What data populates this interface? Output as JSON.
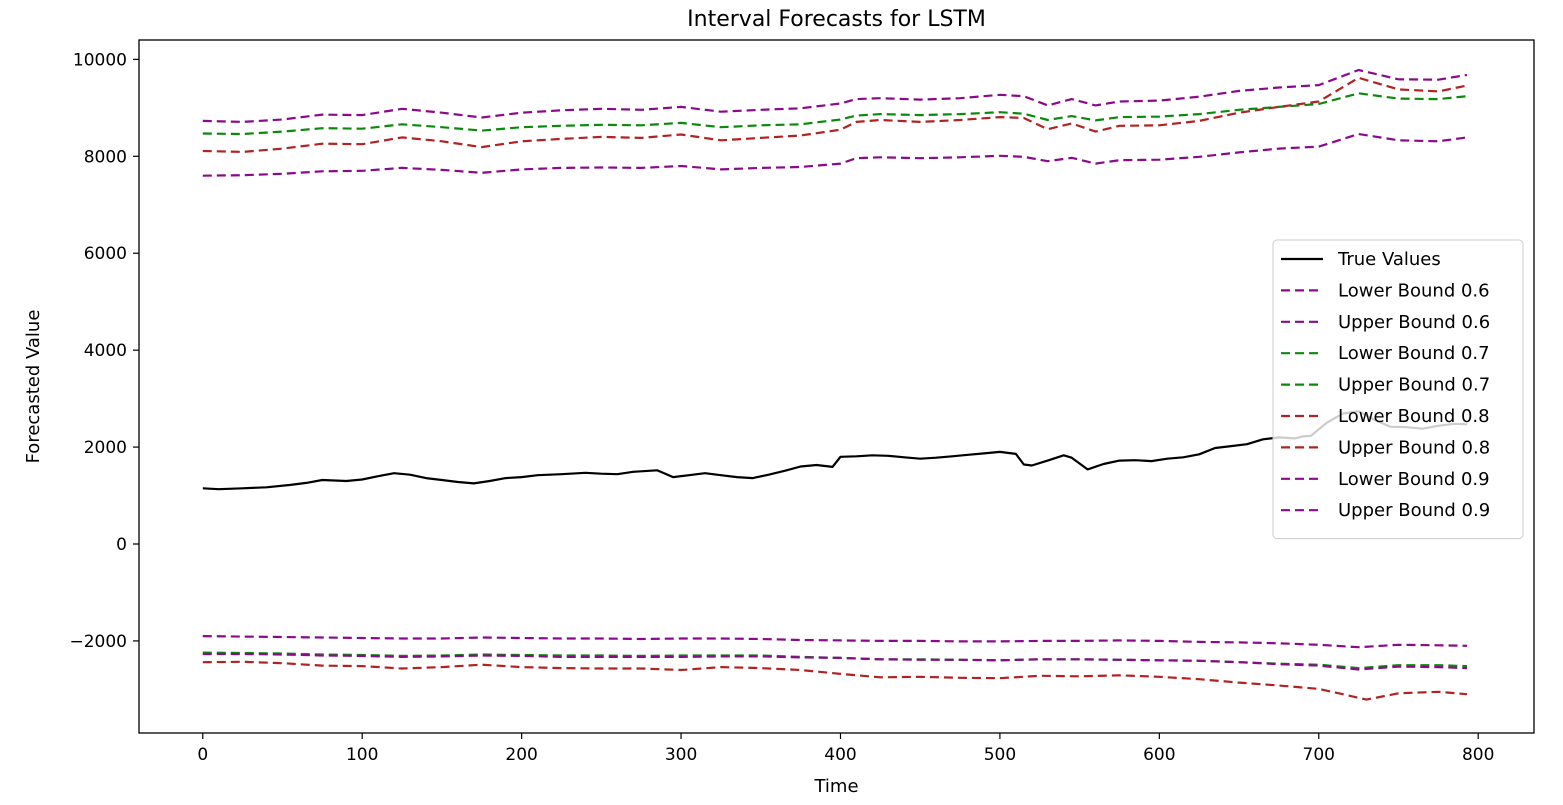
{
  "chart_data": {
    "type": "line",
    "title": "Interval Forecasts for LSTM",
    "xlabel": "Time",
    "ylabel": "Forecasted Value",
    "xlim": [
      -40,
      835
    ],
    "ylim": [
      -3900,
      10400
    ],
    "xticks": [
      0,
      100,
      200,
      300,
      400,
      500,
      600,
      700,
      800
    ],
    "xtick_labels": [
      "0",
      "100",
      "200",
      "300",
      "400",
      "500",
      "600",
      "700",
      "800"
    ],
    "yticks": [
      -2000,
      0,
      2000,
      4000,
      6000,
      8000,
      10000
    ],
    "ytick_labels": [
      "−2000",
      "0",
      "2000",
      "4000",
      "6000",
      "8000",
      "10000"
    ],
    "grid": false,
    "legend_position": "center-right",
    "series": [
      {
        "name": "True Values",
        "color": "#000000",
        "style": "solid",
        "x": [
          0,
          10,
          25,
          40,
          55,
          65,
          75,
          90,
          100,
          110,
          120,
          130,
          140,
          150,
          160,
          170,
          180,
          190,
          200,
          210,
          225,
          240,
          250,
          260,
          270,
          285,
          295,
          305,
          315,
          325,
          335,
          345,
          355,
          365,
          375,
          385,
          395,
          400,
          410,
          420,
          430,
          440,
          450,
          460,
          470,
          480,
          490,
          500,
          510,
          515,
          520,
          530,
          540,
          545,
          555,
          565,
          575,
          585,
          595,
          605,
          615,
          625,
          635,
          645,
          655,
          665,
          675,
          685,
          690,
          695,
          705,
          715,
          725,
          735,
          745,
          755,
          765,
          775,
          785,
          793
        ],
        "values": [
          1150,
          1130,
          1150,
          1170,
          1220,
          1260,
          1320,
          1300,
          1330,
          1400,
          1460,
          1430,
          1360,
          1320,
          1280,
          1250,
          1300,
          1360,
          1380,
          1420,
          1440,
          1470,
          1450,
          1440,
          1490,
          1520,
          1380,
          1420,
          1460,
          1420,
          1380,
          1360,
          1430,
          1510,
          1600,
          1630,
          1590,
          1800,
          1810,
          1830,
          1820,
          1790,
          1760,
          1780,
          1810,
          1840,
          1870,
          1900,
          1860,
          1640,
          1620,
          1720,
          1830,
          1780,
          1540,
          1650,
          1720,
          1730,
          1710,
          1760,
          1790,
          1850,
          1980,
          2020,
          2060,
          2160,
          2200,
          2180,
          2220,
          2230,
          2500,
          2690,
          2740,
          2560,
          2420,
          2410,
          2380,
          2440,
          2480,
          2470
        ]
      },
      {
        "name": "Lower Bound 0.6",
        "color": "#8b0a8b",
        "style": "dashed",
        "x": [
          0,
          25,
          50,
          75,
          100,
          125,
          150,
          175,
          200,
          225,
          250,
          275,
          300,
          325,
          350,
          375,
          400,
          425,
          450,
          475,
          500,
          525,
          550,
          575,
          600,
          625,
          650,
          675,
          700,
          725,
          750,
          775,
          793
        ],
        "values": [
          -1900,
          -1910,
          -1920,
          -1930,
          -1940,
          -1950,
          -1950,
          -1930,
          -1940,
          -1950,
          -1950,
          -1960,
          -1950,
          -1950,
          -1960,
          -1980,
          -1990,
          -2000,
          -2000,
          -2010,
          -2010,
          -2000,
          -2000,
          -1990,
          -2000,
          -2020,
          -2030,
          -2050,
          -2080,
          -2130,
          -2080,
          -2090,
          -2100
        ]
      },
      {
        "name": "Upper Bound 0.6",
        "color": "#8b0a8b",
        "style": "dashed",
        "x": [
          0,
          25,
          50,
          75,
          100,
          125,
          150,
          175,
          200,
          225,
          250,
          275,
          300,
          325,
          350,
          375,
          400,
          410,
          425,
          450,
          475,
          500,
          515,
          530,
          545,
          560,
          575,
          600,
          625,
          650,
          675,
          700,
          725,
          750,
          775,
          793
        ],
        "values": [
          7600,
          7610,
          7640,
          7690,
          7700,
          7760,
          7720,
          7660,
          7730,
          7760,
          7770,
          7760,
          7800,
          7730,
          7760,
          7780,
          7850,
          7960,
          7980,
          7960,
          7980,
          8010,
          7990,
          7900,
          7970,
          7850,
          7920,
          7930,
          7990,
          8080,
          8160,
          8200,
          8460,
          8330,
          8310,
          8390
        ]
      },
      {
        "name": "Lower Bound 0.7",
        "color": "#0a8a0a",
        "style": "dashed",
        "x": [
          0,
          25,
          50,
          75,
          100,
          125,
          150,
          175,
          200,
          225,
          250,
          275,
          300,
          325,
          350,
          375,
          400,
          425,
          450,
          475,
          500,
          525,
          550,
          575,
          600,
          625,
          650,
          675,
          700,
          725,
          750,
          775,
          793
        ],
        "values": [
          -2240,
          -2250,
          -2260,
          -2280,
          -2290,
          -2310,
          -2300,
          -2280,
          -2290,
          -2300,
          -2300,
          -2310,
          -2300,
          -2300,
          -2300,
          -2330,
          -2350,
          -2380,
          -2380,
          -2390,
          -2400,
          -2380,
          -2380,
          -2390,
          -2400,
          -2410,
          -2440,
          -2470,
          -2490,
          -2560,
          -2500,
          -2500,
          -2520
        ]
      },
      {
        "name": "Upper Bound 0.7",
        "color": "#0a8a0a",
        "style": "dashed",
        "x": [
          0,
          25,
          50,
          75,
          100,
          125,
          150,
          175,
          200,
          225,
          250,
          275,
          300,
          325,
          350,
          375,
          400,
          410,
          425,
          450,
          475,
          500,
          515,
          530,
          545,
          560,
          575,
          600,
          625,
          650,
          675,
          700,
          725,
          750,
          775,
          793
        ],
        "values": [
          8470,
          8460,
          8510,
          8580,
          8570,
          8660,
          8600,
          8530,
          8600,
          8630,
          8650,
          8640,
          8690,
          8600,
          8640,
          8660,
          8760,
          8840,
          8870,
          8850,
          8870,
          8910,
          8880,
          8750,
          8830,
          8740,
          8810,
          8820,
          8870,
          8960,
          9020,
          9080,
          9300,
          9190,
          9180,
          9240
        ]
      },
      {
        "name": "Lower Bound 0.8",
        "color": "#b22222",
        "style": "dashed",
        "x": [
          0,
          25,
          50,
          75,
          100,
          125,
          150,
          175,
          200,
          225,
          250,
          275,
          300,
          325,
          350,
          375,
          400,
          425,
          450,
          475,
          500,
          525,
          550,
          575,
          600,
          625,
          650,
          675,
          700,
          715,
          730,
          750,
          775,
          793
        ],
        "values": [
          -2440,
          -2430,
          -2460,
          -2510,
          -2520,
          -2570,
          -2540,
          -2490,
          -2540,
          -2560,
          -2570,
          -2570,
          -2600,
          -2540,
          -2560,
          -2600,
          -2680,
          -2750,
          -2740,
          -2760,
          -2770,
          -2720,
          -2730,
          -2710,
          -2740,
          -2790,
          -2860,
          -2920,
          -2990,
          -3100,
          -3210,
          -3080,
          -3050,
          -3100
        ]
      },
      {
        "name": "Upper Bound 0.8",
        "color": "#b22222",
        "style": "dashed",
        "x": [
          0,
          25,
          50,
          75,
          100,
          125,
          150,
          175,
          200,
          225,
          250,
          275,
          300,
          325,
          350,
          375,
          400,
          410,
          425,
          450,
          475,
          500,
          515,
          530,
          545,
          560,
          575,
          600,
          625,
          650,
          675,
          700,
          725,
          750,
          775,
          793
        ],
        "values": [
          8110,
          8090,
          8160,
          8260,
          8250,
          8390,
          8310,
          8190,
          8310,
          8360,
          8400,
          8380,
          8450,
          8330,
          8380,
          8430,
          8550,
          8710,
          8750,
          8710,
          8750,
          8810,
          8790,
          8560,
          8680,
          8510,
          8630,
          8640,
          8730,
          8900,
          9020,
          9130,
          9620,
          9380,
          9340,
          9460
        ]
      },
      {
        "name": "Lower Bound 0.9",
        "color": "#8b0a8b",
        "style": "dashed",
        "x": [
          0,
          25,
          50,
          75,
          100,
          125,
          150,
          175,
          200,
          225,
          250,
          275,
          300,
          325,
          350,
          375,
          400,
          425,
          450,
          475,
          500,
          525,
          550,
          575,
          600,
          625,
          650,
          675,
          700,
          725,
          750,
          775,
          793
        ],
        "values": [
          -2270,
          -2270,
          -2280,
          -2300,
          -2310,
          -2330,
          -2320,
          -2300,
          -2310,
          -2330,
          -2330,
          -2330,
          -2330,
          -2320,
          -2320,
          -2340,
          -2350,
          -2380,
          -2390,
          -2390,
          -2400,
          -2380,
          -2380,
          -2390,
          -2400,
          -2410,
          -2440,
          -2480,
          -2510,
          -2590,
          -2530,
          -2540,
          -2560
        ]
      },
      {
        "name": "Upper Bound 0.9",
        "color": "#8b0a8b",
        "style": "dashed",
        "x": [
          0,
          25,
          50,
          75,
          100,
          125,
          150,
          175,
          200,
          225,
          250,
          275,
          300,
          325,
          350,
          375,
          400,
          410,
          425,
          450,
          475,
          500,
          515,
          530,
          545,
          560,
          575,
          600,
          625,
          650,
          675,
          700,
          725,
          750,
          775,
          793
        ],
        "values": [
          8730,
          8710,
          8760,
          8860,
          8850,
          8980,
          8900,
          8800,
          8900,
          8950,
          8980,
          8960,
          9020,
          8920,
          8960,
          8990,
          9090,
          9180,
          9200,
          9170,
          9200,
          9270,
          9240,
          9050,
          9180,
          9050,
          9130,
          9150,
          9230,
          9350,
          9420,
          9470,
          9780,
          9590,
          9580,
          9680
        ]
      }
    ]
  }
}
